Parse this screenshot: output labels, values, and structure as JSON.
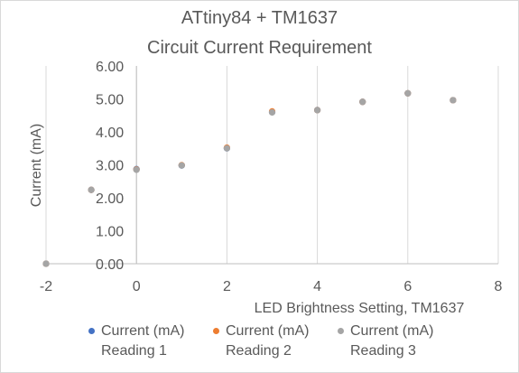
{
  "chart_data": {
    "type": "scatter",
    "title_line1": "ATtiny84 + TM1637",
    "title_line2": "Circuit Current Requirement",
    "xlabel": "LED Brightness Setting, TM1637",
    "ylabel": "Current (mA)",
    "xlim": [
      -2,
      8
    ],
    "ylim": [
      0,
      6
    ],
    "x_ticks": [
      "-2",
      "0",
      "2",
      "4",
      "6",
      "8"
    ],
    "y_ticks": [
      "0.00",
      "1.00",
      "2.00",
      "3.00",
      "4.00",
      "5.00",
      "6.00"
    ],
    "grid": "vertical",
    "legend_position": "bottom",
    "series": [
      {
        "name_line1": "Current (mA)",
        "name_line2": "Reading 1",
        "color": "#4472C4",
        "x": [
          -2,
          -1,
          0,
          1,
          2,
          3,
          4,
          5,
          6,
          7
        ],
        "y": [
          0.0,
          2.24,
          2.87,
          2.98,
          3.5,
          4.6,
          4.66,
          4.91,
          5.17,
          4.96
        ]
      },
      {
        "name_line1": "Current (mA)",
        "name_line2": "Reading 2",
        "color": "#ED7D31",
        "x": [
          -2,
          -1,
          0,
          1,
          2,
          3,
          4,
          5,
          6,
          7
        ],
        "y": [
          0.0,
          2.24,
          2.86,
          2.99,
          3.52,
          4.62,
          4.66,
          4.91,
          5.17,
          4.96
        ]
      },
      {
        "name_line1": "Current (mA)",
        "name_line2": "Reading 3",
        "color": "#A5A5A5",
        "x": [
          -2,
          -1,
          0,
          1,
          2,
          3,
          4,
          5,
          6,
          7
        ],
        "y": [
          0.0,
          2.24,
          2.85,
          2.98,
          3.5,
          4.59,
          4.66,
          4.91,
          5.17,
          4.96
        ]
      }
    ]
  }
}
